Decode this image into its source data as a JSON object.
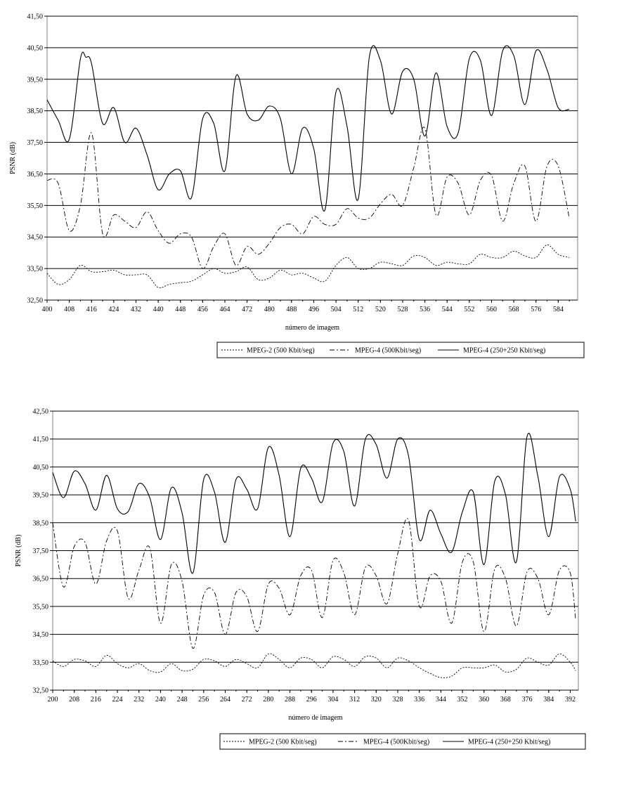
{
  "chart_data": [
    {
      "type": "line",
      "xlabel": "número de imagem",
      "ylabel": "PSNR (dB)",
      "ylim": [
        32.5,
        41.5
      ],
      "xlim": [
        400,
        591
      ],
      "y_ticks": [
        "32,50",
        "33,50",
        "34,50",
        "35,50",
        "36,50",
        "37,50",
        "38,50",
        "39,50",
        "40,50",
        "41,50"
      ],
      "x_ticks": [
        "400",
        "408",
        "416",
        "424",
        "432",
        "440",
        "448",
        "456",
        "464",
        "472",
        "480",
        "488",
        "496",
        "504",
        "512",
        "520",
        "528",
        "536",
        "544",
        "552",
        "560",
        "568",
        "576",
        "584"
      ],
      "grid": "horizontal",
      "legend_position": "bottom-right",
      "series": [
        {
          "name": "MPEG-2 (500 Kbit/seg)",
          "style": "dotted",
          "x": [
            400,
            404,
            408,
            412,
            416,
            420,
            424,
            428,
            432,
            436,
            440,
            444,
            448,
            452,
            456,
            460,
            464,
            468,
            472,
            476,
            480,
            484,
            488,
            492,
            496,
            500,
            504,
            508,
            512,
            516,
            520,
            524,
            528,
            532,
            536,
            540,
            544,
            548,
            552,
            556,
            560,
            564,
            568,
            572,
            576,
            580,
            584,
            588
          ],
          "y": [
            33.35,
            33.0,
            33.15,
            33.6,
            33.4,
            33.4,
            33.45,
            33.3,
            33.3,
            33.3,
            32.9,
            33.0,
            33.05,
            33.1,
            33.3,
            33.5,
            33.35,
            33.4,
            33.55,
            33.15,
            33.2,
            33.45,
            33.3,
            33.35,
            33.2,
            33.1,
            33.6,
            33.85,
            33.5,
            33.5,
            33.7,
            33.65,
            33.6,
            33.9,
            33.85,
            33.6,
            33.7,
            33.65,
            33.65,
            33.95,
            33.85,
            33.85,
            34.05,
            33.9,
            33.85,
            34.25,
            33.95,
            33.85
          ]
        },
        {
          "name": "MPEG-4 (500Kbit/seg)",
          "style": "dash-dot",
          "x": [
            400,
            404,
            408,
            412,
            416,
            420,
            424,
            428,
            432,
            436,
            440,
            444,
            448,
            452,
            456,
            460,
            464,
            468,
            472,
            476,
            480,
            484,
            488,
            492,
            496,
            500,
            504,
            508,
            512,
            516,
            520,
            524,
            528,
            532,
            536,
            540,
            544,
            548,
            552,
            556,
            560,
            564,
            568,
            572,
            576,
            580,
            584,
            588
          ],
          "y": [
            36.3,
            36.2,
            34.7,
            35.5,
            37.8,
            34.6,
            35.2,
            35.0,
            34.8,
            35.3,
            34.7,
            34.3,
            34.6,
            34.5,
            33.5,
            34.2,
            34.6,
            33.6,
            34.2,
            33.95,
            34.3,
            34.8,
            34.9,
            34.6,
            35.15,
            34.9,
            34.9,
            35.4,
            35.1,
            35.1,
            35.55,
            35.85,
            35.5,
            36.7,
            37.95,
            35.2,
            36.4,
            36.2,
            35.2,
            36.3,
            36.45,
            35.0,
            36.2,
            36.75,
            35.0,
            36.75,
            36.75,
            35.1
          ]
        },
        {
          "name": "MPEG-4 (250+250 Kbit/seg)",
          "style": "solid",
          "x": [
            400,
            404,
            408,
            412,
            414,
            416,
            420,
            424,
            428,
            432,
            436,
            440,
            444,
            448,
            452,
            456,
            460,
            464,
            468,
            472,
            476,
            480,
            484,
            488,
            492,
            496,
            500,
            504,
            508,
            512,
            516,
            520,
            524,
            528,
            532,
            536,
            540,
            544,
            548,
            552,
            556,
            560,
            564,
            568,
            572,
            576,
            580,
            584,
            588
          ],
          "y": [
            38.85,
            38.2,
            37.6,
            40.15,
            40.2,
            40.0,
            38.1,
            38.6,
            37.5,
            37.95,
            37.1,
            36.0,
            36.5,
            36.6,
            35.75,
            38.25,
            38.1,
            36.6,
            39.6,
            38.4,
            38.2,
            38.65,
            38.25,
            36.5,
            37.95,
            37.3,
            35.35,
            39.1,
            38.0,
            35.7,
            40.2,
            40.1,
            38.4,
            39.75,
            39.5,
            37.7,
            39.7,
            38.0,
            37.8,
            40.15,
            40.1,
            38.35,
            40.4,
            40.25,
            38.7,
            40.4,
            39.8,
            38.6,
            38.55
          ]
        }
      ]
    },
    {
      "type": "line",
      "xlabel": "número de imagem",
      "ylabel": "PSNR (dB)",
      "ylim": [
        32.5,
        42.5
      ],
      "xlim": [
        200,
        395
      ],
      "y_ticks": [
        "32,50",
        "33,50",
        "34,50",
        "35,50",
        "36,50",
        "37,50",
        "38,50",
        "39,50",
        "40,50",
        "41,50",
        "42,50"
      ],
      "x_ticks": [
        "200",
        "208",
        "216",
        "224",
        "232",
        "240",
        "248",
        "256",
        "264",
        "272",
        "280",
        "288",
        "296",
        "304",
        "312",
        "320",
        "328",
        "336",
        "344",
        "352",
        "360",
        "368",
        "376",
        "384",
        "392"
      ],
      "grid": "horizontal",
      "legend_position": "bottom-right",
      "series": [
        {
          "name": "MPEG-2 (500 Kbit/seg)",
          "style": "dotted",
          "x": [
            200,
            204,
            208,
            212,
            216,
            220,
            224,
            228,
            232,
            236,
            240,
            244,
            248,
            252,
            256,
            260,
            264,
            268,
            272,
            276,
            280,
            284,
            288,
            292,
            296,
            300,
            304,
            308,
            312,
            316,
            320,
            324,
            328,
            332,
            336,
            340,
            344,
            348,
            352,
            356,
            360,
            364,
            368,
            372,
            376,
            380,
            384,
            388,
            392,
            394
          ],
          "y": [
            33.55,
            33.35,
            33.6,
            33.55,
            33.35,
            33.75,
            33.45,
            33.3,
            33.45,
            33.2,
            33.15,
            33.45,
            33.2,
            33.25,
            33.6,
            33.55,
            33.35,
            33.6,
            33.45,
            33.3,
            33.8,
            33.6,
            33.3,
            33.65,
            33.6,
            33.3,
            33.7,
            33.6,
            33.35,
            33.7,
            33.65,
            33.3,
            33.65,
            33.55,
            33.3,
            33.1,
            32.95,
            33.0,
            33.3,
            33.3,
            33.3,
            33.4,
            33.15,
            33.25,
            33.65,
            33.5,
            33.4,
            33.8,
            33.5,
            33.2
          ]
        },
        {
          "name": "MPEG-4 (500Kbit/seg)",
          "style": "dash-dot",
          "x": [
            200,
            204,
            208,
            212,
            216,
            220,
            224,
            228,
            232,
            236,
            240,
            244,
            248,
            252,
            256,
            260,
            264,
            268,
            272,
            276,
            280,
            284,
            288,
            292,
            296,
            300,
            304,
            308,
            312,
            316,
            320,
            324,
            328,
            332,
            336,
            340,
            344,
            348,
            352,
            356,
            360,
            364,
            368,
            372,
            376,
            380,
            384,
            388,
            392,
            394
          ],
          "y": [
            38.5,
            36.2,
            37.65,
            37.8,
            36.3,
            37.85,
            38.2,
            35.8,
            36.8,
            37.6,
            34.9,
            37.0,
            36.4,
            34.0,
            35.9,
            36.0,
            34.5,
            36.0,
            35.85,
            34.6,
            36.3,
            36.15,
            35.2,
            36.6,
            36.8,
            35.1,
            37.15,
            36.7,
            35.2,
            36.9,
            36.6,
            35.6,
            37.4,
            38.6,
            35.5,
            36.6,
            36.4,
            34.9,
            37.1,
            37.1,
            34.6,
            36.85,
            36.5,
            34.8,
            36.75,
            36.5,
            35.2,
            36.8,
            36.7,
            35.0
          ]
        },
        {
          "name": "MPEG-4 (250+250 Kbit/seg)",
          "style": "solid",
          "x": [
            200,
            204,
            208,
            212,
            216,
            220,
            224,
            228,
            232,
            236,
            240,
            244,
            248,
            252,
            256,
            260,
            264,
            268,
            272,
            276,
            280,
            284,
            288,
            292,
            296,
            300,
            304,
            308,
            312,
            316,
            320,
            324,
            328,
            332,
            336,
            340,
            344,
            348,
            352,
            356,
            360,
            364,
            368,
            372,
            376,
            380,
            384,
            388,
            392,
            394
          ],
          "y": [
            40.3,
            39.4,
            40.35,
            39.9,
            38.95,
            40.2,
            39.0,
            38.9,
            39.9,
            39.4,
            37.9,
            39.75,
            38.85,
            36.7,
            40.05,
            39.6,
            37.8,
            40.05,
            39.7,
            39.0,
            41.2,
            40.2,
            38.0,
            40.45,
            40.1,
            39.25,
            41.35,
            41.05,
            39.1,
            41.5,
            41.3,
            40.1,
            41.5,
            40.9,
            37.9,
            38.95,
            38.1,
            37.45,
            38.9,
            39.6,
            37.0,
            40.0,
            39.5,
            37.1,
            41.6,
            40.15,
            38.0,
            40.15,
            39.7,
            38.55
          ]
        }
      ]
    }
  ]
}
